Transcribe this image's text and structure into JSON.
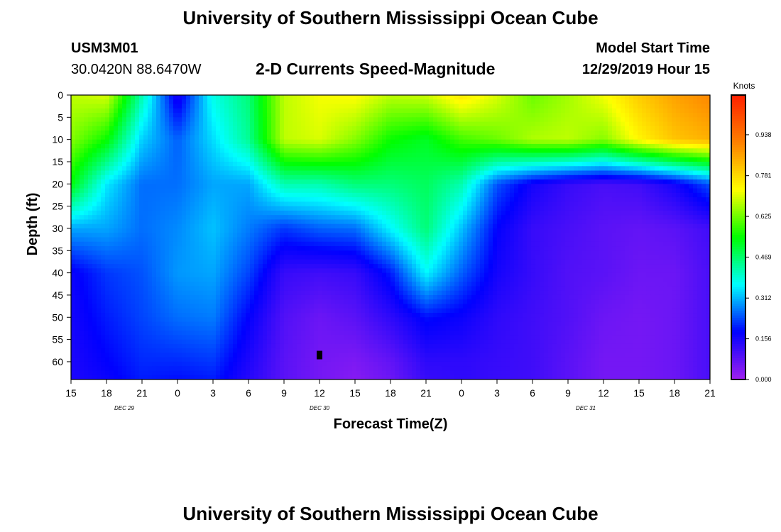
{
  "header": {
    "title": "University of Southern Mississippi Ocean Cube",
    "station_id": "USM3M01",
    "station_coords": "30.0420N 88.6470W",
    "plot_title": "2-D Currents Speed-Magnitude",
    "model_label": "Model Start Time",
    "model_time": "12/29/2019 Hour 15"
  },
  "footer": {
    "title": "University of Southern Mississippi Ocean Cube"
  },
  "colors": {
    "scale": [
      "#a020f0",
      "#0000ff",
      "#00ffff",
      "#00ff00",
      "#ffff00",
      "#ff8000",
      "#ff2000"
    ],
    "marker": "#000000"
  },
  "chart_data": {
    "type": "heatmap",
    "title": "2-D Currents Speed-Magnitude",
    "xlabel": "Forecast Time(Z)",
    "ylabel": "Depth (ft)",
    "x_tick_labels": [
      "15",
      "18",
      "21",
      "0",
      "3",
      "6",
      "9",
      "12",
      "15",
      "18",
      "21",
      "0",
      "3",
      "6",
      "9",
      "12",
      "15",
      "18",
      "21"
    ],
    "date_labels": [
      {
        "text": "DEC  29",
        "at_index": 1.5
      },
      {
        "text": "DEC  30",
        "at_index": 7
      },
      {
        "text": "DEC  31",
        "at_index": 14.5
      }
    ],
    "y_tick_labels": [
      "0",
      "5",
      "10",
      "15",
      "20",
      "25",
      "30",
      "35",
      "40",
      "45",
      "50",
      "55",
      "60"
    ],
    "y_values": [
      0,
      5,
      10,
      15,
      20,
      25,
      30,
      35,
      40,
      45,
      50,
      55,
      60
    ],
    "ylim": [
      0,
      64
    ],
    "colorbar": {
      "unit_label": "Knots",
      "ticks": [
        "0.000",
        "0.156",
        "0.312",
        "0.469",
        "0.625",
        "0.781",
        "0.938"
      ],
      "tick_values": [
        0.0,
        0.156,
        0.312,
        0.469,
        0.625,
        0.781,
        0.938
      ],
      "range": [
        0.0,
        1.09
      ]
    },
    "grid_depths": [
      0,
      10,
      20,
      30,
      40,
      50,
      60,
      64
    ],
    "grid": [
      [
        0.68,
        0.7,
        0.42,
        0.15,
        0.38,
        0.46,
        0.68,
        0.72,
        0.73,
        0.68,
        0.69,
        0.76,
        0.7,
        0.62,
        0.66,
        0.72,
        0.8,
        0.86,
        0.9
      ],
      [
        0.64,
        0.55,
        0.33,
        0.25,
        0.34,
        0.44,
        0.68,
        0.7,
        0.64,
        0.55,
        0.52,
        0.59,
        0.62,
        0.67,
        0.68,
        0.64,
        0.74,
        0.81,
        0.84
      ],
      [
        0.54,
        0.35,
        0.26,
        0.26,
        0.3,
        0.3,
        0.42,
        0.42,
        0.46,
        0.46,
        0.48,
        0.42,
        0.24,
        0.16,
        0.12,
        0.1,
        0.11,
        0.16,
        0.24
      ],
      [
        0.3,
        0.3,
        0.26,
        0.28,
        0.32,
        0.27,
        0.22,
        0.25,
        0.26,
        0.36,
        0.46,
        0.32,
        0.18,
        0.12,
        0.1,
        0.08,
        0.07,
        0.08,
        0.11
      ],
      [
        0.17,
        0.22,
        0.24,
        0.29,
        0.3,
        0.23,
        0.12,
        0.11,
        0.12,
        0.2,
        0.36,
        0.25,
        0.16,
        0.12,
        0.09,
        0.08,
        0.06,
        0.06,
        0.1
      ],
      [
        0.16,
        0.2,
        0.23,
        0.26,
        0.27,
        0.18,
        0.09,
        0.06,
        0.08,
        0.13,
        0.19,
        0.17,
        0.13,
        0.11,
        0.09,
        0.06,
        0.05,
        0.06,
        0.1
      ],
      [
        0.15,
        0.18,
        0.21,
        0.21,
        0.22,
        0.15,
        0.08,
        0.05,
        0.04,
        0.07,
        0.13,
        0.13,
        0.12,
        0.11,
        0.08,
        0.05,
        0.05,
        0.06,
        0.1
      ],
      [
        0.15,
        0.17,
        0.2,
        0.19,
        0.2,
        0.14,
        0.08,
        0.05,
        0.03,
        0.06,
        0.12,
        0.13,
        0.12,
        0.11,
        0.08,
        0.05,
        0.05,
        0.06,
        0.1
      ]
    ],
    "annotations": [
      {
        "type": "marker",
        "x_index": 7,
        "depth": 58.5
      }
    ]
  }
}
